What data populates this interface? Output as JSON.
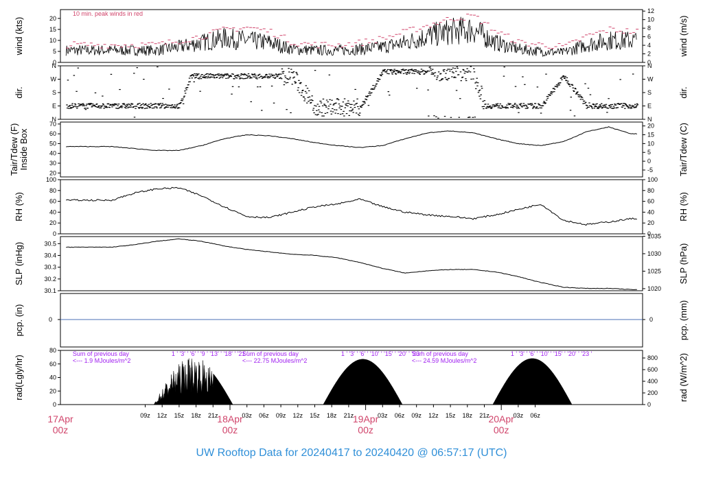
{
  "footer": {
    "title": "UW Rooftop Data for 20240417  to  20240420 @ 06:57:17  (UTC)"
  },
  "colors": {
    "panel_line": "#000000",
    "peak": "#d0436a",
    "precip": "#4a6fb5",
    "accent_red": "#d0436a",
    "accent_purple": "#a020f0",
    "footer": "#2f8fd8"
  },
  "chart_data": [
    {
      "type": "line",
      "panel": "wind",
      "ylabel_left": "wind (kts)",
      "ylabel_right": "wind (m/s)",
      "ylim_left": [
        0,
        24
      ],
      "yticks_left": [
        "0",
        "5",
        "10",
        "15",
        "20"
      ],
      "ylim_right": [
        0,
        12.35
      ],
      "yticks_right": [
        "0",
        "2",
        "4",
        "6",
        "8",
        "10",
        "12"
      ],
      "annotation": "10 min. peak winds in red",
      "series": [
        {
          "values_x": [
            0,
            4,
            8,
            12,
            16,
            20,
            24,
            28,
            32,
            36,
            40,
            44,
            48,
            52,
            56,
            60,
            64,
            68,
            72,
            76,
            80,
            84,
            88,
            92
          ],
          "values": [
            5.5,
            5.5,
            5.5,
            7,
            9,
            11,
            10,
            9,
            6,
            5.5,
            5.5,
            6,
            7,
            9,
            12,
            14,
            15,
            9,
            6,
            5,
            4.5,
            8,
            10,
            10
          ]
        },
        {
          "values_x": [
            0,
            4,
            8,
            12,
            16,
            20,
            24,
            28,
            32,
            36,
            40,
            44,
            48,
            52,
            56,
            60,
            64,
            68,
            72,
            76,
            80,
            84,
            88,
            92
          ],
          "values": [
            8,
            8,
            8,
            10,
            12,
            15,
            16,
            14,
            9,
            8,
            8,
            9,
            11,
            14,
            17,
            20,
            21,
            14,
            9,
            8,
            7,
            12,
            15,
            14
          ]
        }
      ]
    },
    {
      "type": "scatter",
      "panel": "dir",
      "ylabel_left": "dir.",
      "ylabel_right": "dir.",
      "yticks_left": [
        "N",
        "E",
        "S",
        "W",
        "N"
      ],
      "yticks_right": [
        "N",
        "E",
        "S",
        "W",
        "N"
      ],
      "x": [
        0,
        4,
        8,
        12,
        14,
        16,
        20,
        24,
        28,
        32,
        36,
        40,
        44,
        48,
        52,
        56,
        60,
        64,
        66,
        68,
        72,
        76,
        80,
        84,
        88,
        92
      ],
      "values": [
        90,
        90,
        90,
        90,
        290,
        290,
        290,
        290,
        290,
        290,
        80,
        80,
        80,
        320,
        320,
        320,
        320,
        320,
        90,
        90,
        90,
        90,
        290,
        90,
        90,
        90
      ]
    },
    {
      "type": "line",
      "panel": "temp",
      "ylabel_left": "Tair/Tdew (F)\nInside Box",
      "ylabel_right": "Tair/Tdew (C)",
      "ylim_left": [
        16,
        72
      ],
      "yticks_left": [
        "20",
        "30",
        "40",
        "50",
        "60",
        "70"
      ],
      "ylim_right": [
        -8.9,
        22.2
      ],
      "yticks_right": [
        "-5",
        "0",
        "5",
        "10",
        "15",
        "20"
      ],
      "x": [
        0,
        4,
        8,
        12,
        16,
        20,
        24,
        28,
        32,
        36,
        40,
        44,
        48,
        52,
        56,
        60,
        64,
        68,
        72,
        76,
        80,
        84,
        88,
        92
      ],
      "values": [
        47,
        45,
        43,
        43,
        48,
        55,
        59,
        58,
        55,
        51,
        48,
        46,
        48,
        55,
        61,
        63,
        61,
        55,
        50,
        48,
        52,
        62,
        67,
        60
      ]
    },
    {
      "type": "line",
      "panel": "rh",
      "ylabel_left": "RH (%)",
      "ylabel_right": "RH (%)",
      "ylim_left": [
        0,
        100
      ],
      "yticks_left": [
        "0",
        "20",
        "40",
        "60",
        "80",
        "100"
      ],
      "ylim_right": [
        0,
        100
      ],
      "yticks_right": [
        "0",
        "20",
        "40",
        "60",
        "80",
        "100"
      ],
      "x": [
        0,
        4,
        8,
        12,
        16,
        20,
        24,
        28,
        32,
        36,
        40,
        44,
        48,
        52,
        56,
        60,
        64,
        68,
        72,
        76,
        80,
        84,
        88,
        92
      ],
      "values": [
        62,
        75,
        83,
        85,
        70,
        50,
        32,
        30,
        40,
        50,
        55,
        64,
        50,
        40,
        35,
        32,
        28,
        35,
        45,
        55,
        25,
        17,
        22,
        28
      ]
    },
    {
      "type": "line",
      "panel": "slp",
      "ylabel_left": "SLP (inHg)",
      "ylabel_right": "SLP (hPa)",
      "ylim_left": [
        30.1,
        30.56
      ],
      "yticks_left": [
        "30.1",
        "30.2",
        "30.3",
        "30.4",
        "30.5"
      ],
      "ylim_right": [
        1019.4,
        1034.9
      ],
      "yticks_right": [
        "1020",
        "1025",
        "1030",
        "1035"
      ],
      "x": [
        0,
        4,
        8,
        12,
        16,
        20,
        24,
        28,
        32,
        36,
        40,
        44,
        48,
        52,
        56,
        60,
        64,
        68,
        72,
        76,
        80,
        84,
        88,
        92
      ],
      "values": [
        30.47,
        30.49,
        30.52,
        30.54,
        30.52,
        30.48,
        30.45,
        30.43,
        30.41,
        30.4,
        30.38,
        30.34,
        30.29,
        30.25,
        30.27,
        30.28,
        30.28,
        30.26,
        30.22,
        30.17,
        30.13,
        30.12,
        30.12,
        30.11
      ]
    },
    {
      "type": "line",
      "panel": "pcp",
      "ylabel_left": "pcp. (in)",
      "ylabel_right": "pcp. (mm)",
      "yticks_left": [
        "0"
      ],
      "yticks_right": [
        "0"
      ],
      "x": [
        0,
        92
      ],
      "values": [
        0,
        0
      ]
    },
    {
      "type": "area",
      "panel": "rad",
      "ylabel_left": "rad(Lgly/hr)",
      "ylabel_right": "rad (W/m^2)",
      "ylim_left": [
        0,
        80
      ],
      "yticks_left": [
        "0",
        "20",
        "40",
        "60",
        "80"
      ],
      "ylim_right": [
        0,
        930
      ],
      "yticks_right": [
        "0",
        "200",
        "400",
        "600",
        "800"
      ],
      "days": [
        {
          "start": 7.5,
          "peak": 19,
          "end": 21.5,
          "max": 65,
          "sum_label": "Sum of previous day",
          "sum_value": "<--- 1.9 MJoules/m^2",
          "hours": "1 ' '3' ' '6' ' '9 ' '13' ' '18' ' '21 '"
        },
        {
          "start": 37.5,
          "peak": 49.5,
          "end": 51.5,
          "max": 67,
          "sum_label": "Sum of previous day",
          "sum_value": "<--- 22.75 MJoules/m^2",
          "hours": "1 ' '3' ' '6' ' '10' ' '15' ' '20' ' '23 '"
        },
        {
          "start": 67.5,
          "peak": 79.5,
          "end": 81.5,
          "max": 68,
          "sum_label": "Sum of previous day",
          "sum_value": "<--- 24.59 MJoules/m^2",
          "hours": "1 ' '3' ' '6' ' '10' ' '15' ' '20' ' '23 '"
        }
      ]
    }
  ],
  "x_axis": {
    "ticks": [
      "09z",
      "12z",
      "15z",
      "18z",
      "21z",
      "03z",
      "06z",
      "09z",
      "12z",
      "15z",
      "18z",
      "21z",
      "03z",
      "06z",
      "09z",
      "12z",
      "15z",
      "18z",
      "21z",
      "03z",
      "06z"
    ],
    "tick_hours": [
      6,
      9,
      12,
      15,
      18,
      24,
      27,
      30,
      33,
      36,
      39,
      42,
      48,
      51,
      54,
      57,
      60,
      63,
      66,
      72,
      75
    ],
    "day_labels": [
      {
        "date": "17Apr",
        "hour": "00z",
        "at": -9
      },
      {
        "date": "18Apr",
        "hour": "00z",
        "at": 21
      },
      {
        "date": "19Apr",
        "hour": "00z",
        "at": 45
      },
      {
        "date": "20Apr",
        "hour": "00z",
        "at": 69
      }
    ]
  }
}
